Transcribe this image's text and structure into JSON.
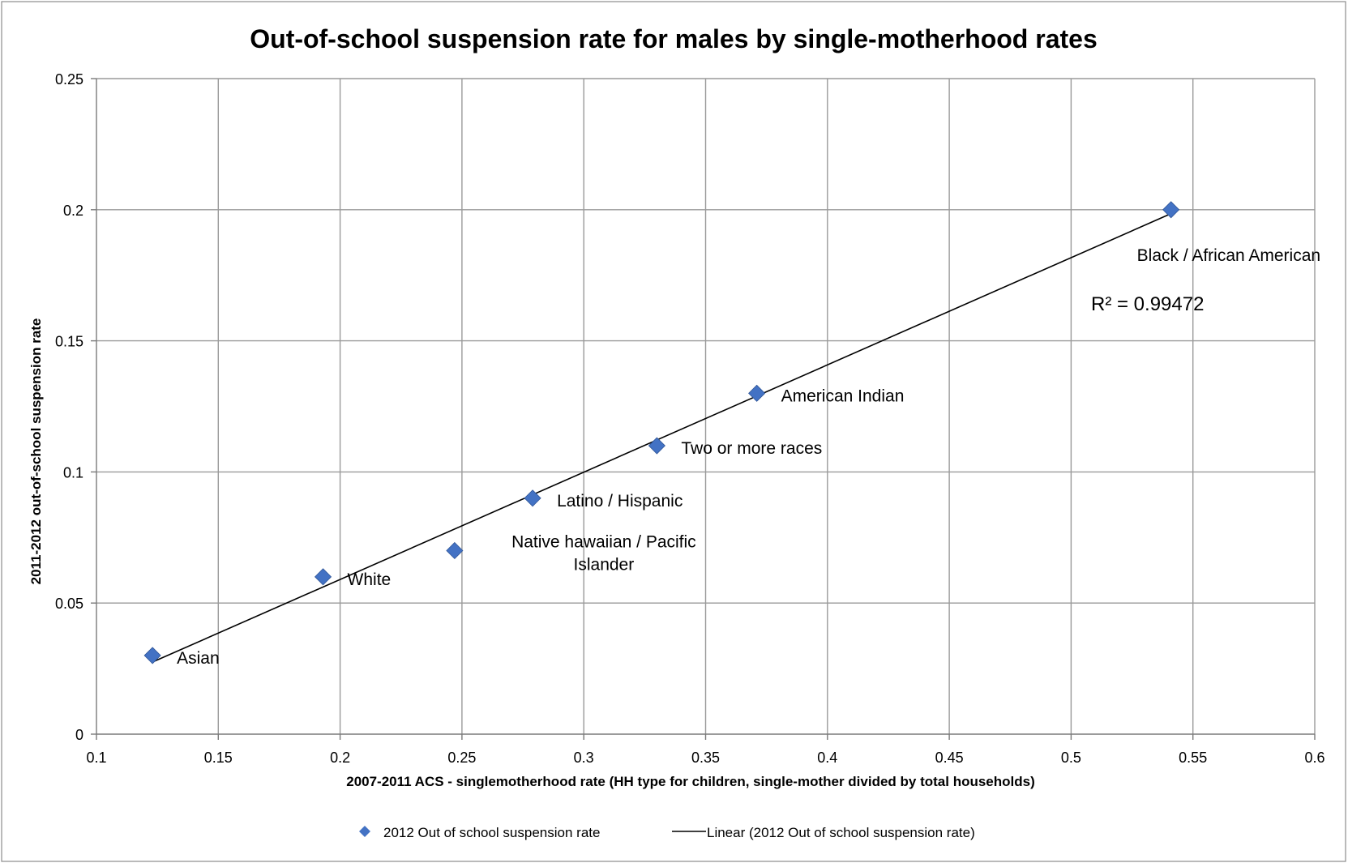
{
  "chart_data": {
    "type": "scatter",
    "title": "Out-of-school suspension rate for males by single-motherhood rates",
    "xlabel": "2007-2011 ACS - singlemotherhood rate (HH type for children, single-mother divided by total households)",
    "ylabel": "2011-2012 out-of-school suspension rate",
    "xlim": [
      0.1,
      0.6
    ],
    "ylim": [
      0,
      0.25
    ],
    "xticks": [
      0.1,
      0.15,
      0.2,
      0.25,
      0.3,
      0.35,
      0.4,
      0.45,
      0.5,
      0.55,
      0.6
    ],
    "xtick_labels": [
      "0.1",
      "0.15",
      "0.2",
      "0.25",
      "0.3",
      "0.35",
      "0.4",
      "0.45",
      "0.5",
      "0.55",
      "0.6"
    ],
    "yticks": [
      0,
      0.05,
      0.1,
      0.15,
      0.2,
      0.25
    ],
    "ytick_labels": [
      "0",
      "0.05",
      "0.1",
      "0.15",
      "0.2",
      "0.25"
    ],
    "grid": true,
    "series": [
      {
        "name": "2012 Out of school suspension rate",
        "marker": "diamond",
        "color": "#4372c4",
        "points": [
          {
            "x": 0.123,
            "y": 0.03,
            "label": "Asian"
          },
          {
            "x": 0.193,
            "y": 0.06,
            "label": "White"
          },
          {
            "x": 0.247,
            "y": 0.07,
            "label": [
              "Native hawaiian / Pacific",
              "Islander"
            ]
          },
          {
            "x": 0.279,
            "y": 0.09,
            "label": "Latino / Hispanic"
          },
          {
            "x": 0.33,
            "y": 0.11,
            "label": "Two or more races"
          },
          {
            "x": 0.371,
            "y": 0.13,
            "label": "American Indian"
          },
          {
            "x": 0.541,
            "y": 0.2,
            "label": "Black / African American"
          }
        ]
      }
    ],
    "trendline": {
      "name": "Linear (2012 Out of school suspension rate)",
      "color": "#000000",
      "x": [
        0.123,
        0.541
      ],
      "y": [
        0.0275,
        0.1985
      ],
      "r_squared_label": "R² = 0.99472"
    },
    "legend": {
      "placement": "bottom",
      "entries": [
        {
          "label": "2012 Out of school suspension rate",
          "symbol": "diamond"
        },
        {
          "label": "Linear (2012 Out of school suspension rate)",
          "symbol": "line"
        }
      ]
    }
  }
}
